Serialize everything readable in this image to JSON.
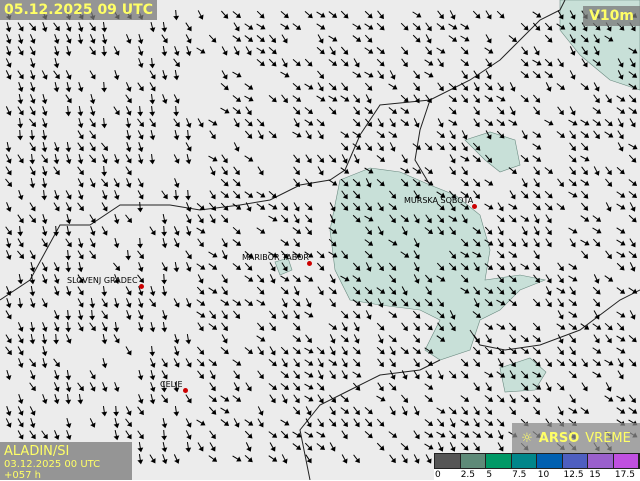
{
  "header": {
    "run_time": "05.12.2025 09 UTC",
    "variable": "V10m"
  },
  "model": {
    "name": "ALADIN/SI",
    "run": "03.12.2025 00 UTC +057 h"
  },
  "logo": {
    "brand": "ARSO",
    "suffix": "VREME",
    "icon": "sun-icon"
  },
  "legend": {
    "unit_ticks": [
      "0",
      "2.5",
      "5",
      "7.5",
      "10",
      "12.5",
      "15",
      "17.5"
    ],
    "colors": [
      "#555555",
      "#5e8a78",
      "#009966",
      "#00868a",
      "#0060b0",
      "#4e5fc0",
      "#9a60cc",
      "#c050e0"
    ]
  },
  "cities": [
    {
      "name": "MURSKA SOBOTA"
    },
    {
      "name": "MARIBOR TABOR"
    },
    {
      "name": "SLOVENJ GRADEC"
    },
    {
      "name": "CELJE"
    }
  ],
  "colors": {
    "wind_area": "#c8e0d8",
    "border": "#222222",
    "label": "#ffff66"
  }
}
